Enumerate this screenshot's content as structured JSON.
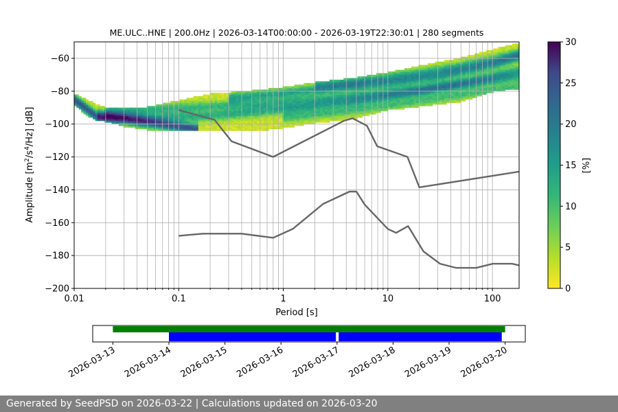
{
  "chart_data": [
    {
      "type": "heatmap",
      "title": "ME.ULC..HNE | 200.0Hz | 2026-03-14T00:00:00 - 2026-03-19T22:30:01 | 280 segments",
      "xlabel": "Period [s]",
      "ylabel_parts": [
        "Amplitude [m",
        "2",
        "/s",
        "4",
        "/Hz] [dB]"
      ],
      "x_scale": "log",
      "xlim": [
        0.01,
        180
      ],
      "ylim": [
        -200,
        -50
      ],
      "x_ticks": [
        0.01,
        0.1,
        1,
        10,
        100
      ],
      "x_tick_labels": [
        "0.01",
        "0.1",
        "1",
        "10",
        "100"
      ],
      "y_ticks": [
        -200,
        -180,
        -160,
        -140,
        -120,
        -100,
        -80,
        -60
      ],
      "y_tick_labels": [
        "−200",
        "−180",
        "−160",
        "−140",
        "−120",
        "−100",
        "−80",
        "−60"
      ],
      "grid": true,
      "colormap": "viridis_r",
      "colorbar": {
        "label": "[%]",
        "range": [
          0,
          30
        ],
        "ticks": [
          0,
          5,
          10,
          15,
          20,
          25,
          30
        ],
        "tick_labels": [
          "0",
          "5",
          "10",
          "15",
          "20",
          "25",
          "30"
        ]
      },
      "ppsd_band": {
        "period": [
          0.01,
          0.013,
          0.016,
          0.02,
          0.03,
          0.05,
          0.1,
          0.2,
          0.5,
          1,
          2,
          5,
          10,
          20,
          50,
          100,
          180
        ],
        "upper_db": [
          -82,
          -85,
          -88,
          -90,
          -91,
          -90,
          -86,
          -82,
          -80,
          -78,
          -75,
          -72,
          -69,
          -65,
          -60,
          -55,
          -51
        ],
        "lower_db": [
          -88,
          -94,
          -97,
          -98,
          -101,
          -103,
          -104,
          -104,
          -104,
          -102,
          -99,
          -96,
          -91,
          -89,
          -86,
          -80,
          -78
        ],
        "dense_lines": [
          {
            "period": [
              0.01,
              0.014,
              0.017,
              0.03,
              0.07,
              0.15
            ],
            "db": [
              -85,
              -92,
              -96,
              -97,
              -100,
              -103
            ],
            "pct": 20
          },
          {
            "period": [
              0.017,
              0.05,
              0.2,
              1,
              5,
              20,
              100,
              180
            ],
            "db": [
              -94,
              -96,
              -95,
              -91,
              -86,
              -80,
              -71,
              -67
            ],
            "pct": 9
          },
          {
            "period": [
              0.02,
              0.1,
              0.5,
              2,
              10,
              50,
              180
            ],
            "db": [
              -92,
              -90,
              -88,
              -85,
              -81,
              -76,
              -71
            ],
            "pct": 8
          },
          {
            "period": [
              0.3,
              1,
              3,
              10,
              30,
              100,
              180
            ],
            "db": [
              -84,
              -81,
              -78,
              -75,
              -71,
              -64,
              -59
            ],
            "pct": 10
          },
          {
            "period": [
              1,
              4,
              15,
              50,
              180
            ],
            "db": [
              -96,
              -92,
              -87,
              -82,
              -77
            ],
            "pct": 7
          },
          {
            "period": [
              2,
              5,
              15,
              40,
              100,
              180
            ],
            "db": [
              -76,
              -74,
              -70,
              -66,
              -61,
              -57
            ],
            "pct": 9
          }
        ]
      },
      "nhnm": {
        "period": [
          0.1,
          0.22,
          0.32,
          0.8,
          3.8,
          4.6,
          6.3,
          7.9,
          15.4,
          20,
          354.8
        ],
        "db": [
          -91.5,
          -97.4,
          -110.5,
          -120,
          -98,
          -96.5,
          -101,
          -113.5,
          -120,
          -138.5,
          -126
        ]
      },
      "nlnm": {
        "period": [
          0.1,
          0.17,
          0.4,
          0.8,
          1.24,
          2.4,
          4.3,
          5,
          6,
          10,
          12,
          15.6,
          21.9,
          31.6,
          45,
          70,
          101,
          154,
          180
        ],
        "db": [
          -168,
          -166.7,
          -166.7,
          -169.2,
          -163.7,
          -148.6,
          -141.1,
          -141.1,
          -149,
          -163.8,
          -166.2,
          -162.1,
          -177.5,
          -185,
          -187.5,
          -187.5,
          -185,
          -185,
          -186
        ]
      }
    },
    {
      "type": "timeline",
      "x_tick_labels": [
        "2026-03-13",
        "2026-03-14",
        "2026-03-15",
        "2026-03-16",
        "2026-03-17",
        "2026-03-18",
        "2026-03-19",
        "2026-03-20"
      ],
      "xlim_days": [
        -0.36,
        7.36
      ],
      "data_available": {
        "color": "#008000",
        "spans_days": [
          [
            0.0,
            7.0
          ]
        ]
      },
      "used_segments": {
        "color": "#0000ff",
        "spans_days": [
          [
            1.0,
            3.98
          ],
          [
            4.03,
            6.94
          ]
        ]
      }
    }
  ],
  "footer": {
    "text": "Generated by SeedPSD on 2026-03-22 | Calculations updated on 2026-03-20"
  }
}
